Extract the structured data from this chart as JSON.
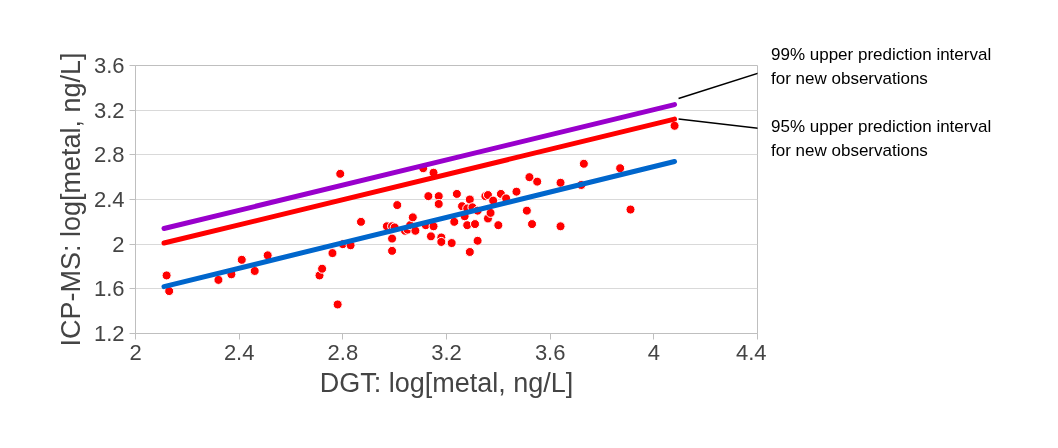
{
  "chart_data": {
    "type": "scatter",
    "xlabel": "DGT: log[metal, ng/L]",
    "ylabel": "ICP-MS: log[metal, ng/L]",
    "xlim": [
      2,
      4.4
    ],
    "xticks": [
      2,
      2.4,
      2.8,
      3.2,
      3.6,
      4,
      4.4
    ],
    "ylim": [
      1.2,
      3.6
    ],
    "yticks": [
      1.2,
      1.6,
      2,
      2.4,
      2.8,
      3.2,
      3.6
    ],
    "grid": "y",
    "annotations": [
      {
        "text": "99% upper prediction interval\nfor new observations",
        "x": 4.08,
        "y": 3.25
      },
      {
        "text": "95% upper prediction interval\nfor new observations",
        "x": 4.08,
        "y": 3.12
      }
    ],
    "series": [
      {
        "color": "#ff0000",
        "marker": "circle",
        "x": [
          2.12,
          2.13,
          2.32,
          2.37,
          2.41,
          2.46,
          2.51,
          2.71,
          2.72,
          2.76,
          2.78,
          2.79,
          2.8,
          2.83,
          2.87,
          2.97,
          2.99,
          2.99,
          2.99,
          3.0,
          3.01,
          3.04,
          3.05,
          3.06,
          3.07,
          3.08,
          3.11,
          3.12,
          3.13,
          3.14,
          3.15,
          3.15,
          3.17,
          3.17,
          3.18,
          3.18,
          3.22,
          3.23,
          3.24,
          3.26,
          3.27,
          3.28,
          3.28,
          3.29,
          3.29,
          3.3,
          3.31,
          3.32,
          3.32,
          3.35,
          3.36,
          3.36,
          3.37,
          3.38,
          3.4,
          3.41,
          3.43,
          3.47,
          3.51,
          3.52,
          3.53,
          3.55,
          3.64,
          3.64,
          3.72,
          3.73,
          3.87,
          3.91,
          4.08
        ],
        "values": [
          1.72,
          1.58,
          1.68,
          1.73,
          1.86,
          1.76,
          1.9,
          1.72,
          1.78,
          1.92,
          1.46,
          2.63,
          2.0,
          1.99,
          2.2,
          2.16,
          2.16,
          2.05,
          1.94,
          2.15,
          2.35,
          2.12,
          2.13,
          2.17,
          2.24,
          2.12,
          2.68,
          2.17,
          2.43,
          2.07,
          2.64,
          2.16,
          2.43,
          2.36,
          2.06,
          2.02,
          2.01,
          2.2,
          2.45,
          2.34,
          2.25,
          2.32,
          2.17,
          1.93,
          2.4,
          2.33,
          2.18,
          2.03,
          2.3,
          2.43,
          2.44,
          2.23,
          2.28,
          2.39,
          2.17,
          2.45,
          2.41,
          2.47,
          2.3,
          2.6,
          2.18,
          2.56,
          2.55,
          2.16,
          2.53,
          2.72,
          2.68,
          2.31,
          3.06
        ]
      },
      {
        "type": "line",
        "color": "#0066cc",
        "x": [
          2.11,
          4.08
        ],
        "values": [
          1.62,
          2.74
        ]
      },
      {
        "type": "line",
        "color": "#ff0000",
        "x": [
          2.11,
          4.08
        ],
        "values": [
          2.01,
          3.12
        ]
      },
      {
        "type": "line",
        "color": "#9900cc",
        "x": [
          2.11,
          4.08
        ],
        "values": [
          2.14,
          3.25
        ]
      }
    ]
  }
}
